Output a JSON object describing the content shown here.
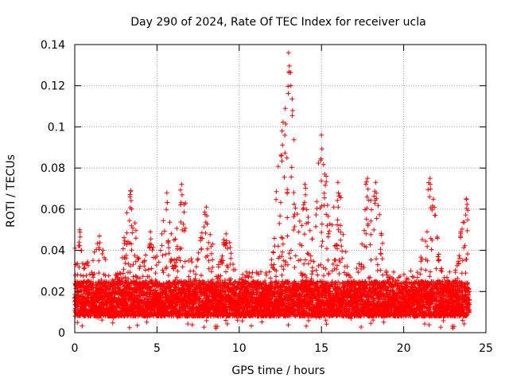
{
  "chart_data": {
    "type": "scatter",
    "title": "Day 290 of 2024, Rate Of TEC Index for receiver ucla",
    "xlabel": "GPS time / hours",
    "ylabel": "ROTI / TECUs",
    "xlim": [
      0,
      25
    ],
    "ylim": [
      0,
      0.14
    ],
    "x_ticks": [
      0,
      5,
      10,
      15,
      20,
      25
    ],
    "x_tick_labels": [
      "0",
      "5",
      "10",
      "15",
      "20",
      "25"
    ],
    "y_ticks": [
      0,
      0.02,
      0.04,
      0.06,
      0.08,
      0.1,
      0.12,
      0.14
    ],
    "y_tick_labels": [
      "0",
      "0.02",
      "0.04",
      "0.06",
      "0.08",
      "0.1",
      "0.12",
      "0.14"
    ],
    "grid": true,
    "marker": "+",
    "color": "#ff0000",
    "data_range": [
      0,
      24
    ],
    "baseline_band": [
      0.008,
      0.025
    ],
    "series": [
      {
        "name": "ROTI",
        "peaks": [
          {
            "x": 0.3,
            "y": 0.05
          },
          {
            "x": 1.5,
            "y": 0.047
          },
          {
            "x": 3.4,
            "y": 0.069
          },
          {
            "x": 4.6,
            "y": 0.049
          },
          {
            "x": 5.6,
            "y": 0.068
          },
          {
            "x": 6.5,
            "y": 0.072
          },
          {
            "x": 8.0,
            "y": 0.061
          },
          {
            "x": 9.2,
            "y": 0.048
          },
          {
            "x": 12.6,
            "y": 0.098
          },
          {
            "x": 12.8,
            "y": 0.109
          },
          {
            "x": 13.0,
            "y": 0.136
          },
          {
            "x": 14.0,
            "y": 0.072
          },
          {
            "x": 15.0,
            "y": 0.096
          },
          {
            "x": 15.2,
            "y": 0.077
          },
          {
            "x": 16.0,
            "y": 0.073
          },
          {
            "x": 17.8,
            "y": 0.075
          },
          {
            "x": 18.3,
            "y": 0.073
          },
          {
            "x": 21.6,
            "y": 0.075
          },
          {
            "x": 23.8,
            "y": 0.065
          }
        ],
        "floor_min": 0.002
      }
    ]
  }
}
